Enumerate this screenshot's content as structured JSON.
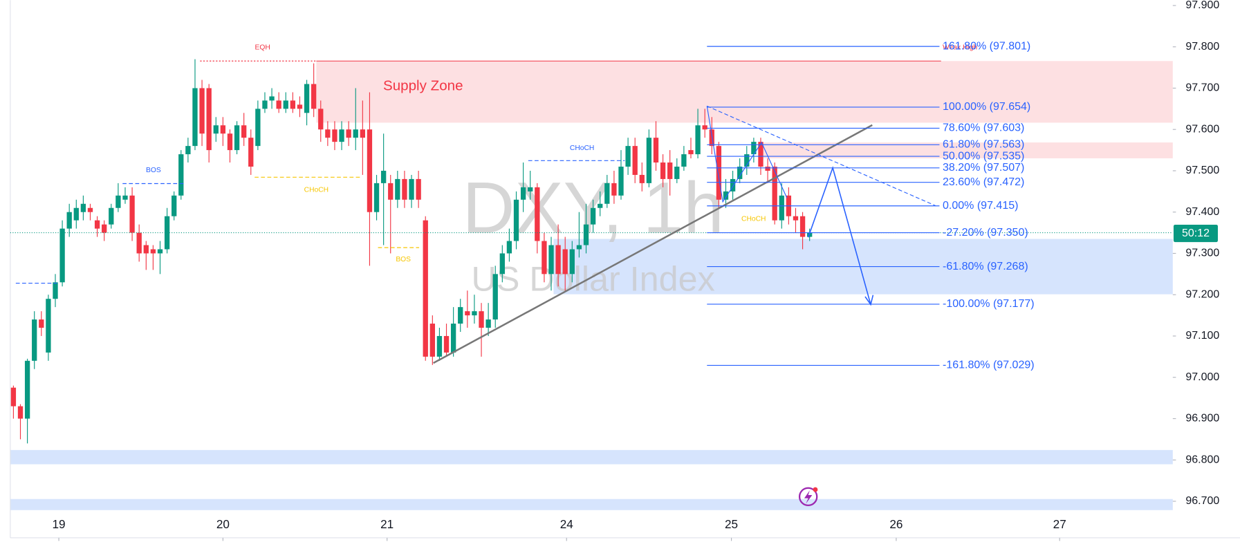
{
  "chart_data": {
    "type": "candlestick",
    "title": "DXY, 1h",
    "subtitle": "US Dollar Index",
    "up_color": "#089981",
    "down_color": "#f23645",
    "open": [
      96.975,
      96.93,
      96.9,
      97.04,
      97.14,
      97.06,
      97.19,
      97.23,
      97.36,
      97.38,
      97.4,
      97.41,
      97.38,
      97.37,
      97.37,
      97.41,
      97.43,
      97.44,
      97.35,
      97.32,
      97.31,
      97.3,
      97.31,
      97.39,
      97.44,
      97.54,
      97.56,
      97.7,
      97.7,
      97.59,
      97.61,
      97.59,
      97.55,
      97.61,
      97.58,
      97.56,
      97.65,
      97.67,
      97.67,
      97.65,
      97.67,
      97.66,
      97.64,
      97.71,
      97.65,
      97.6,
      97.6,
      97.57,
      97.6,
      97.58,
      97.6,
      97.6,
      97.4,
      97.47,
      97.47,
      97.43,
      97.48,
      97.43,
      97.48,
      97.38,
      97.13,
      97.05,
      97.1,
      97.06,
      97.13,
      97.16,
      97.15,
      97.16,
      97.12,
      97.14,
      97.25,
      97.3,
      97.33,
      97.43,
      97.45,
      97.46,
      97.33,
      97.25,
      97.32,
      97.31,
      97.25,
      97.31,
      97.32,
      97.37,
      97.41,
      97.42,
      97.47,
      97.44,
      97.51,
      97.56,
      97.49,
      97.47,
      97.58,
      97.52,
      97.52,
      97.48,
      97.51,
      97.55,
      97.54,
      97.61,
      97.6,
      97.56,
      97.43,
      97.45,
      97.48,
      97.51,
      97.54,
      97.57,
      97.51,
      97.51,
      97.38,
      97.44,
      97.39,
      97.39,
      97.34
    ],
    "high": [
      96.98,
      96.935,
      97.045,
      97.16,
      97.16,
      97.2,
      97.25,
      97.38,
      97.42,
      97.43,
      97.44,
      97.42,
      97.39,
      97.38,
      97.42,
      97.47,
      97.46,
      97.46,
      97.37,
      97.33,
      97.32,
      97.33,
      97.41,
      97.45,
      97.55,
      97.58,
      97.77,
      97.72,
      97.71,
      97.63,
      97.63,
      97.6,
      97.62,
      97.64,
      97.6,
      97.67,
      97.69,
      97.7,
      97.69,
      97.69,
      97.69,
      97.68,
      97.72,
      97.76,
      97.67,
      97.62,
      97.62,
      97.62,
      97.62,
      97.7,
      97.67,
      97.69,
      97.49,
      97.59,
      97.49,
      97.5,
      97.5,
      97.49,
      97.5,
      97.39,
      97.15,
      97.12,
      97.13,
      97.17,
      97.19,
      97.21,
      97.2,
      97.18,
      97.18,
      97.27,
      97.32,
      97.36,
      97.45,
      97.52,
      97.5,
      97.47,
      97.35,
      97.34,
      97.37,
      97.34,
      97.33,
      97.4,
      97.42,
      97.43,
      97.45,
      97.49,
      97.5,
      97.55,
      97.58,
      97.58,
      97.52,
      97.6,
      97.62,
      97.54,
      97.55,
      97.53,
      97.56,
      97.58,
      97.65,
      97.65,
      97.63,
      97.57,
      97.48,
      97.5,
      97.53,
      97.56,
      97.58,
      97.58,
      97.53,
      97.52,
      97.47,
      97.46,
      97.41,
      97.4,
      97.36
    ],
    "low": [
      96.9,
      96.85,
      96.84,
      97.02,
      97.1,
      97.04,
      97.17,
      97.22,
      97.34,
      97.36,
      97.38,
      97.38,
      97.34,
      97.33,
      97.36,
      97.4,
      97.42,
      97.33,
      97.28,
      97.26,
      97.26,
      97.25,
      97.3,
      97.38,
      97.43,
      97.52,
      97.55,
      97.56,
      97.52,
      97.57,
      97.56,
      97.52,
      97.54,
      97.56,
      97.49,
      97.55,
      97.64,
      97.65,
      97.64,
      97.64,
      97.64,
      97.63,
      97.61,
      97.63,
      97.57,
      97.56,
      97.55,
      97.55,
      97.56,
      97.55,
      97.49,
      97.27,
      97.38,
      97.32,
      97.3,
      97.41,
      97.41,
      97.41,
      97.41,
      97.04,
      97.03,
      97.04,
      97.05,
      97.05,
      97.11,
      97.12,
      97.13,
      97.05,
      97.1,
      97.12,
      97.23,
      97.28,
      97.31,
      97.4,
      97.43,
      97.3,
      97.23,
      97.21,
      97.22,
      97.21,
      97.23,
      97.29,
      97.3,
      97.35,
      97.39,
      97.41,
      97.42,
      97.43,
      97.49,
      97.47,
      97.45,
      97.46,
      97.5,
      97.46,
      97.44,
      97.47,
      97.5,
      97.53,
      97.53,
      97.58,
      97.54,
      97.41,
      97.41,
      97.43,
      97.47,
      97.49,
      97.52,
      97.49,
      97.47,
      97.37,
      97.36,
      97.37,
      97.35,
      97.31,
      97.33
    ],
    "close": [
      96.93,
      96.9,
      97.04,
      97.14,
      97.12,
      97.19,
      97.23,
      97.36,
      97.4,
      97.41,
      97.42,
      97.4,
      97.36,
      97.35,
      97.41,
      97.44,
      97.44,
      97.35,
      97.3,
      97.3,
      97.3,
      97.31,
      97.39,
      97.44,
      97.54,
      97.56,
      97.7,
      97.59,
      97.55,
      97.61,
      97.59,
      97.55,
      97.61,
      97.58,
      97.51,
      97.65,
      97.67,
      97.68,
      97.65,
      97.67,
      97.65,
      97.65,
      97.71,
      97.65,
      97.6,
      97.58,
      97.57,
      97.6,
      97.58,
      97.6,
      97.58,
      97.4,
      97.47,
      97.5,
      97.43,
      97.48,
      97.43,
      97.48,
      97.43,
      97.05,
      97.05,
      97.1,
      97.06,
      97.13,
      97.17,
      97.15,
      97.16,
      97.12,
      97.14,
      97.25,
      97.3,
      97.33,
      97.43,
      97.46,
      97.46,
      97.33,
      97.25,
      97.32,
      97.25,
      97.25,
      97.31,
      97.32,
      97.37,
      97.41,
      97.42,
      97.47,
      97.44,
      97.51,
      97.56,
      97.49,
      97.47,
      97.58,
      97.52,
      97.48,
      97.48,
      97.51,
      97.54,
      97.54,
      97.61,
      97.6,
      97.56,
      97.43,
      97.45,
      97.48,
      97.51,
      97.54,
      97.57,
      97.51,
      97.5,
      97.38,
      97.44,
      97.39,
      97.38,
      97.34,
      97.35
    ],
    "xlim": [
      -0.45,
      166
    ],
    "xticks": [
      {
        "value": 6.5,
        "label": "19"
      },
      {
        "value": 30.0,
        "label": "20"
      },
      {
        "value": 53.5,
        "label": "21"
      },
      {
        "value": 79.2,
        "label": "24"
      },
      {
        "value": 102.8,
        "label": "25"
      },
      {
        "value": 126.4,
        "label": "26"
      },
      {
        "value": 149.8,
        "label": "27"
      }
    ],
    "ylim": [
      96.669,
      97.913
    ],
    "yticks": [
      {
        "value": 97.9,
        "label": "97.900"
      },
      {
        "value": 97.8,
        "label": "97.800"
      },
      {
        "value": 97.7,
        "label": "97.700"
      },
      {
        "value": 97.6,
        "label": "97.600"
      },
      {
        "value": 97.5,
        "label": "97.500"
      },
      {
        "value": 97.4,
        "label": "97.400"
      },
      {
        "value": 97.3,
        "label": "97.300"
      },
      {
        "value": 97.2,
        "label": "97.200"
      },
      {
        "value": 97.1,
        "label": "97.100"
      },
      {
        "value": 97.0,
        "label": "97.000"
      },
      {
        "value": 96.9,
        "label": "96.900"
      },
      {
        "value": 96.8,
        "label": "96.800"
      },
      {
        "value": 96.7,
        "label": "96.700"
      }
    ],
    "fib_levels": [
      {
        "value": 97.801,
        "label": "161.80% (97.801)"
      },
      {
        "value": 97.654,
        "label": "100.00% (97.654)"
      },
      {
        "value": 97.603,
        "label": "78.60% (97.603)"
      },
      {
        "value": 97.563,
        "label": "61.80% (97.563)"
      },
      {
        "value": 97.535,
        "label": "50.00% (97.535)"
      },
      {
        "value": 97.507,
        "label": "38.20% (97.507)"
      },
      {
        "value": 97.472,
        "label": "23.60% (97.472)"
      },
      {
        "value": 97.415,
        "label": "0.00% (97.415)"
      },
      {
        "value": 97.35,
        "label": "-27.20% (97.350)"
      },
      {
        "value": 97.268,
        "label": "-61.80% (97.268)"
      },
      {
        "value": 97.177,
        "label": "-100.00% (97.177)"
      },
      {
        "value": 97.029,
        "label": "-161.80% (97.029)"
      }
    ],
    "annotations": [
      "EQH",
      "Supply Zone",
      "BOS",
      "CHoCH",
      "BOS",
      "CHoCH",
      "CHoCH",
      "Weak High"
    ],
    "countdown": "50:12"
  }
}
